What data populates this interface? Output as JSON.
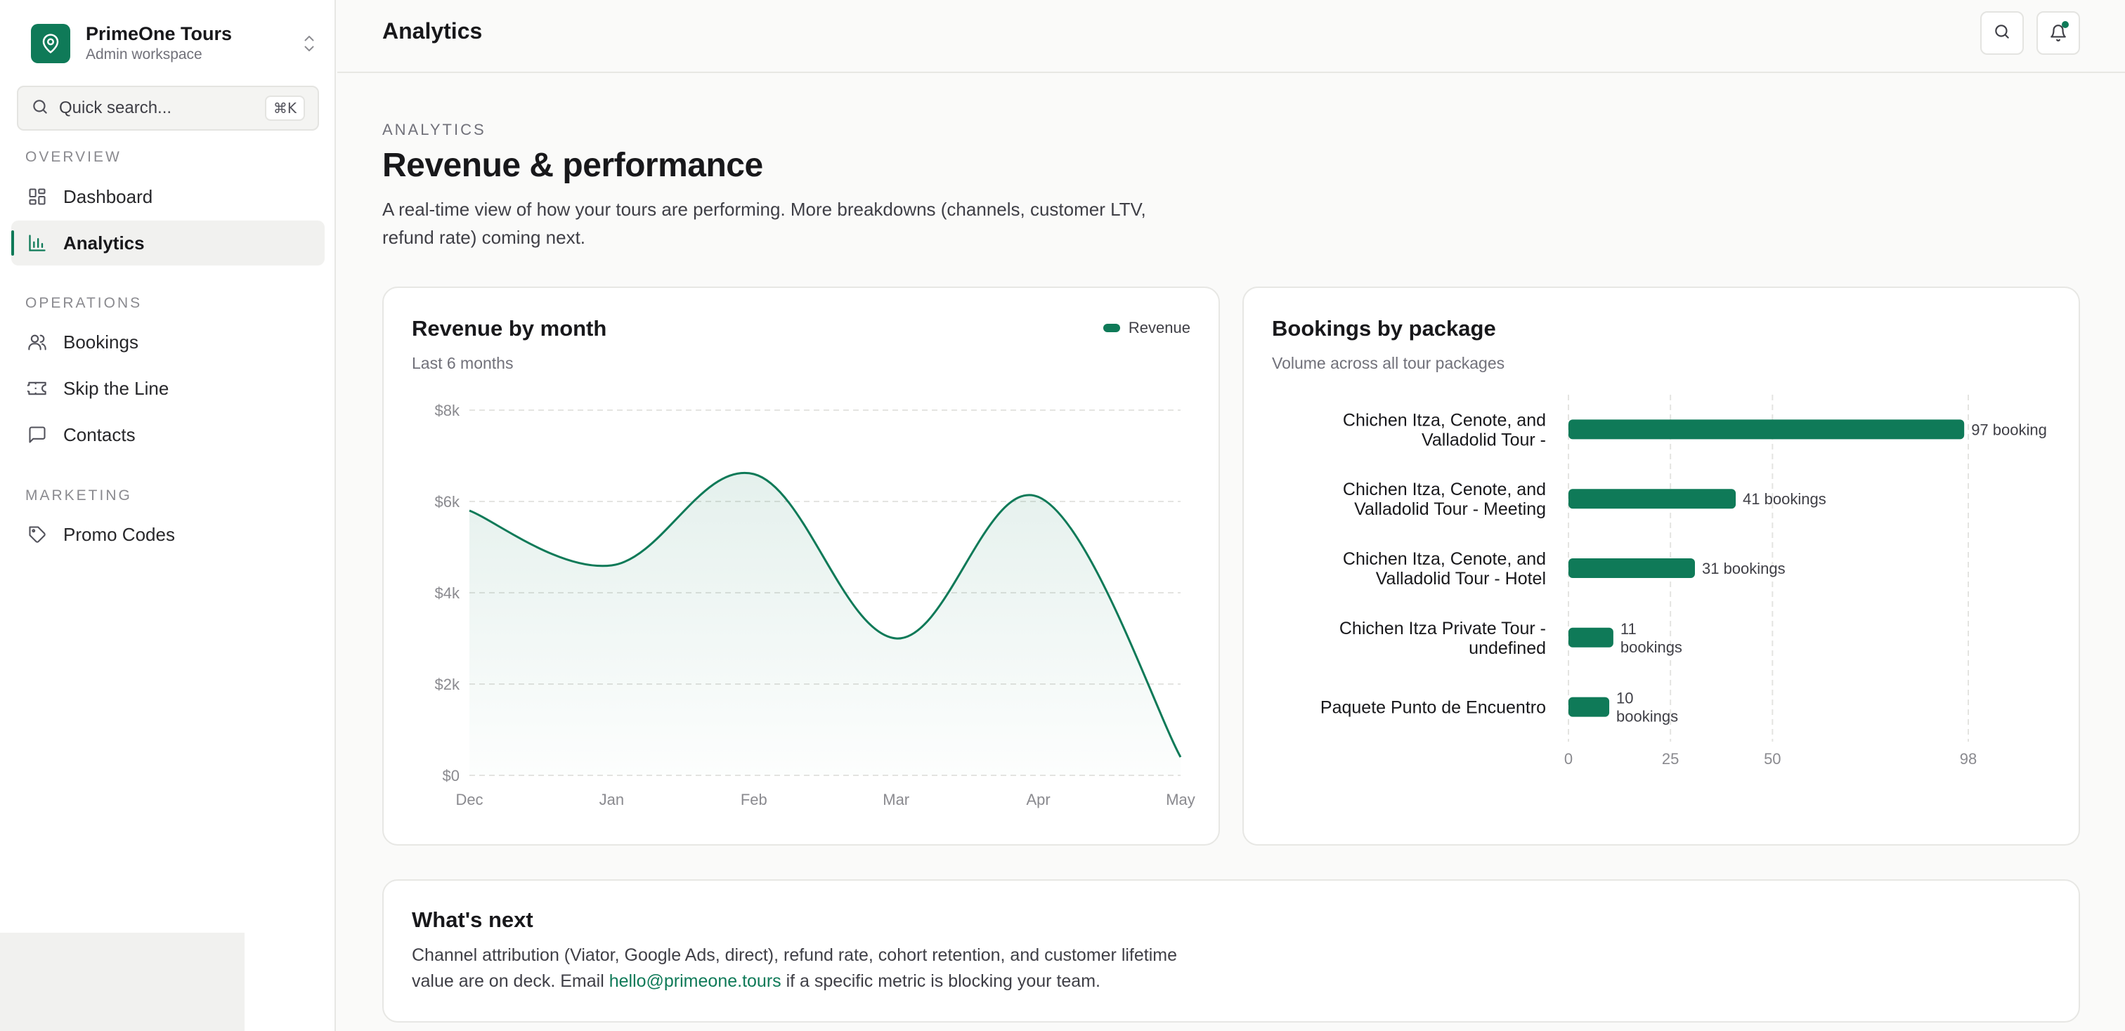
{
  "brand": {
    "name": "PrimeOne Tours",
    "subtitle": "Admin workspace"
  },
  "search": {
    "label": "Quick search...",
    "shortcut": "⌘K"
  },
  "sidebar": {
    "sections": [
      {
        "title": "OVERVIEW"
      },
      {
        "title": "OPERATIONS"
      },
      {
        "title": "MARKETING"
      }
    ],
    "items": [
      {
        "label": "Dashboard",
        "icon": "dashboard-grid-icon"
      },
      {
        "label": "Analytics",
        "icon": "bar-chart-icon",
        "active": true
      },
      {
        "label": "Bookings",
        "icon": "users-icon"
      },
      {
        "label": "Skip the Line",
        "icon": "ticket-icon"
      },
      {
        "label": "Contacts",
        "icon": "message-square-icon"
      },
      {
        "label": "Promo Codes",
        "icon": "tag-icon"
      }
    ]
  },
  "topbar": {
    "title": "Analytics",
    "icons": [
      "search-icon",
      "bell-icon"
    ]
  },
  "header": {
    "eyebrow": "ANALYTICS",
    "title": "Revenue & performance",
    "description": "A real-time view of how your tours are performing. More breakdowns (channels, customer LTV, refund rate) coming next."
  },
  "revenue_card": {
    "title": "Revenue by month",
    "subtitle": "Last 6 months",
    "legend": "Revenue"
  },
  "bookings_card": {
    "title": "Bookings by package",
    "subtitle": "Volume across all tour packages"
  },
  "next_card": {
    "title": "What's next",
    "body_before": "Channel attribution (Viator, Google Ads, direct), refund rate, cohort retention, and customer lifetime value are on deck. Email ",
    "email": "hello@primeone.tours",
    "body_after": " if a specific metric is blocking your team."
  },
  "colors": {
    "accent": "#0f7a58",
    "text": "#18181b",
    "muted": "#71717a",
    "border": "#e7e7e4"
  },
  "chart_data": [
    {
      "type": "area",
      "title": "Revenue by month",
      "subtitle": "Last 6 months",
      "categories": [
        "Dec",
        "Jan",
        "Feb",
        "Mar",
        "Apr",
        "May"
      ],
      "series": [
        {
          "name": "Revenue",
          "values": [
            5800,
            4600,
            6600,
            3000,
            6100,
            400
          ]
        }
      ],
      "y_ticks": [
        "$0",
        "$2k",
        "$4k",
        "$6k",
        "$8k"
      ],
      "ylim": [
        0,
        8000
      ],
      "grid": true,
      "legend": "top-right"
    },
    {
      "type": "bar",
      "orientation": "horizontal",
      "title": "Bookings by package",
      "subtitle": "Volume across all tour packages",
      "categories": [
        [
          "Chichen Itza, Cenote, and",
          "Valladolid Tour -"
        ],
        [
          "Chichen Itza, Cenote, and",
          "Valladolid Tour - Meeting"
        ],
        [
          "Chichen Itza, Cenote, and",
          "Valladolid Tour - Hotel"
        ],
        [
          "Chichen Itza Private Tour -",
          "undefined"
        ],
        [
          "Paquete Punto de Encuentro"
        ]
      ],
      "values": [
        97,
        41,
        31,
        11,
        10
      ],
      "value_labels": [
        [
          "97 booking"
        ],
        [
          "41 bookings"
        ],
        [
          "31 bookings"
        ],
        [
          "11",
          "bookings"
        ],
        [
          "10",
          "bookings"
        ]
      ],
      "x_ticks": [
        "0",
        "25",
        "50",
        "98"
      ],
      "xlim": [
        0,
        98
      ],
      "grid": true
    }
  ]
}
